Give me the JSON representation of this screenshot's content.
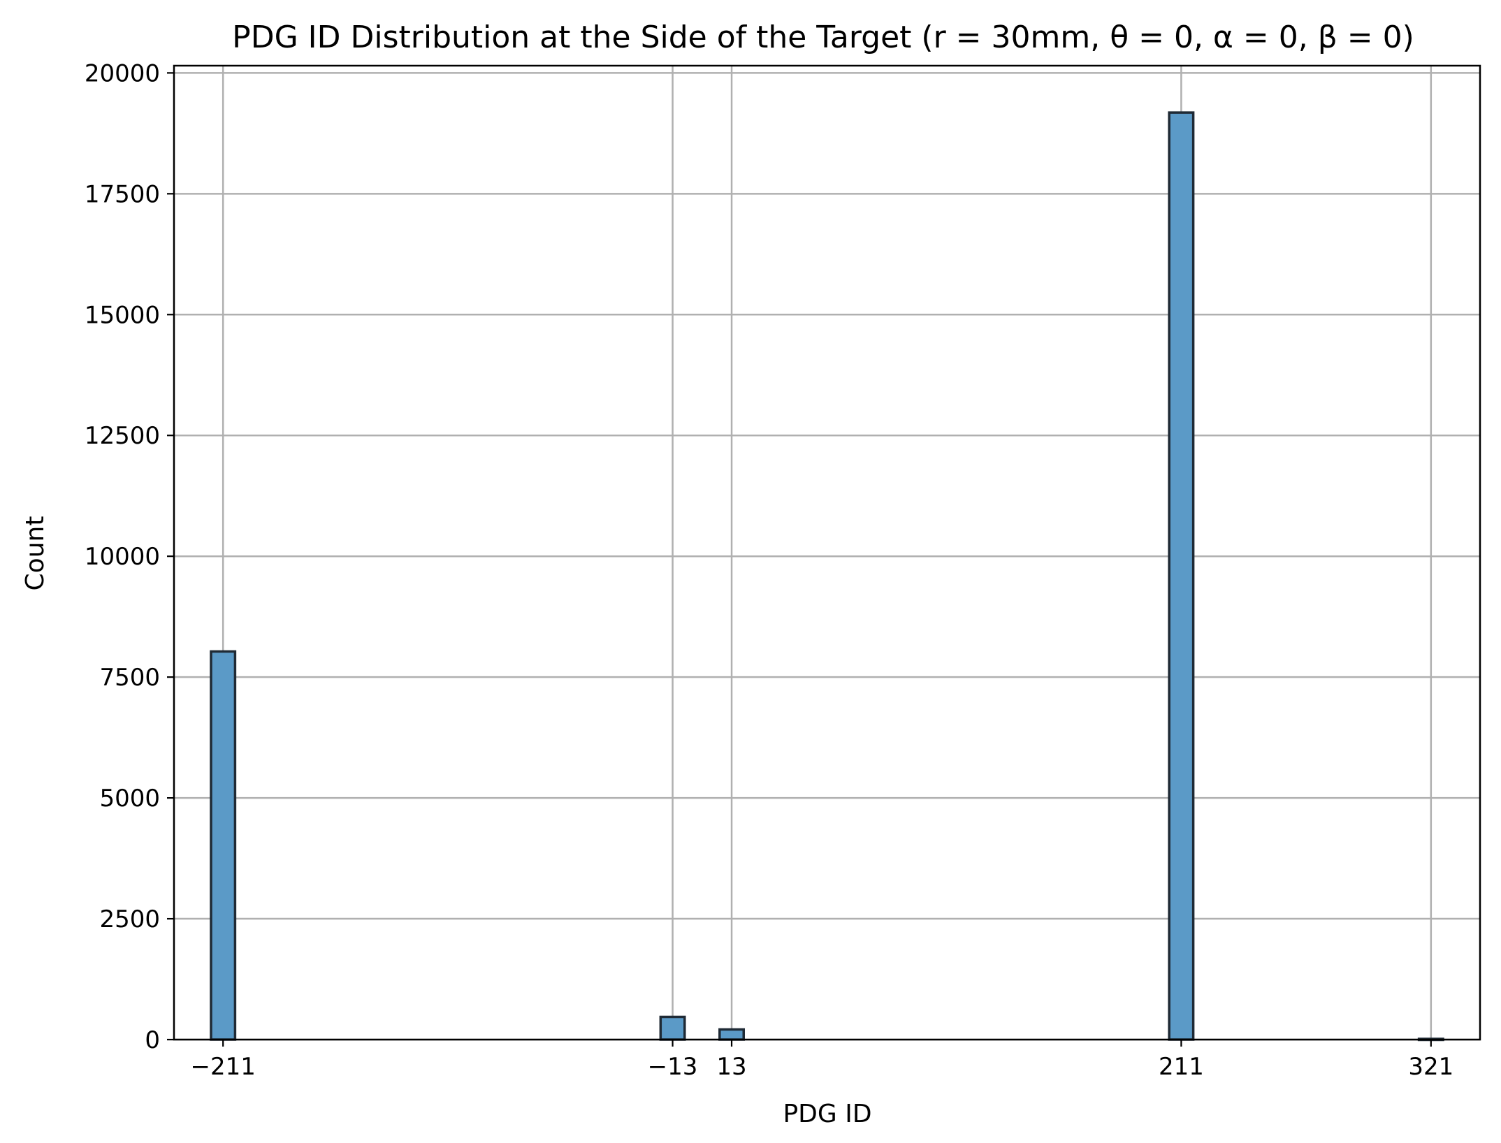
{
  "chart_data": {
    "type": "bar",
    "title": "PDG ID Distribution at the Side of the Target (r = 30mm, θ = 0, α = 0, β = 0)",
    "xlabel": "PDG ID",
    "ylabel": "Count",
    "xlim": [
      -232.6,
      342.6
    ],
    "ylim": [
      0,
      20150
    ],
    "x_ticks": [
      {
        "value": -211,
        "label": "−211"
      },
      {
        "value": -13,
        "label": "−13"
      },
      {
        "value": 13,
        "label": "13"
      },
      {
        "value": 211,
        "label": "211"
      },
      {
        "value": 321,
        "label": "321"
      }
    ],
    "y_ticks": [
      {
        "value": 0,
        "label": "0"
      },
      {
        "value": 2500,
        "label": "2500"
      },
      {
        "value": 5000,
        "label": "5000"
      },
      {
        "value": 7500,
        "label": "7500"
      },
      {
        "value": 10000,
        "label": "10000"
      },
      {
        "value": 12500,
        "label": "12500"
      },
      {
        "value": 15000,
        "label": "15000"
      },
      {
        "value": 17500,
        "label": "17500"
      },
      {
        "value": 20000,
        "label": "20000"
      }
    ],
    "bin_width": 10.6,
    "bars": [
      {
        "x": -211,
        "value": 8030
      },
      {
        "x": -13,
        "value": 470
      },
      {
        "x": 13,
        "value": 210
      },
      {
        "x": 211,
        "value": 19180
      },
      {
        "x": 321,
        "value": 15
      }
    ],
    "grid": true,
    "colors": {
      "bar_fill": "#5b9ac7",
      "bar_edge": "#1f2a35",
      "grid": "#b0b0b0"
    }
  }
}
